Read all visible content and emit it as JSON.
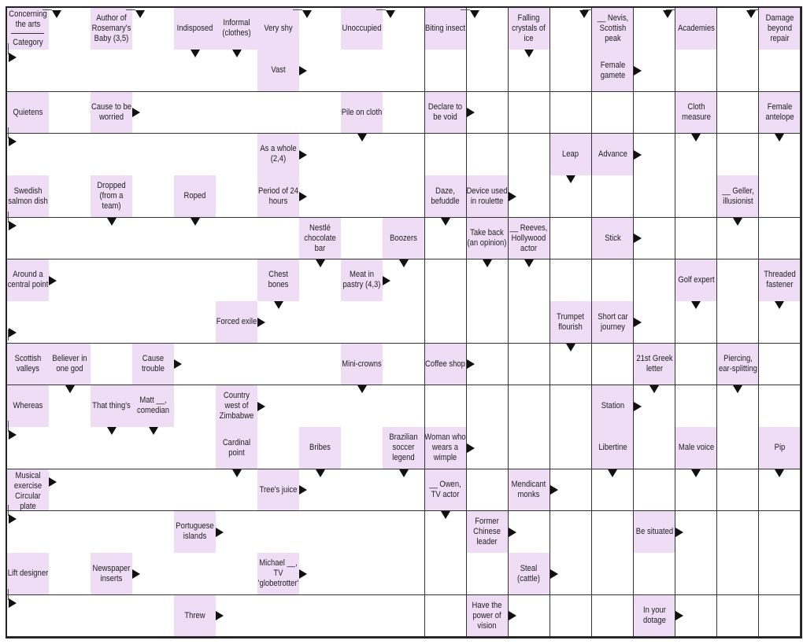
{
  "puzzle": {
    "rows": 15,
    "cols": 19,
    "colors": {
      "clue_bg": "#efdcf5",
      "grid_line": "#333333",
      "arrow": "#111111"
    },
    "clues": [
      {
        "row": 0,
        "col": 0,
        "split": true,
        "parts": [
          {
            "text": "Concerning the arts",
            "arrow": "corner"
          },
          {
            "text": "Category",
            "arrow": "corner"
          }
        ]
      },
      {
        "row": 0,
        "col": 2,
        "text": "Author of Rosemary's Baby (3,5)",
        "arrow": "corner"
      },
      {
        "row": 0,
        "col": 4,
        "text": "Indisposed",
        "arrow": "down"
      },
      {
        "row": 0,
        "col": 5,
        "text": "Informal (clothes)",
        "arrow": "down"
      },
      {
        "row": 0,
        "col": 6,
        "text": "Very shy",
        "arrow": "corner"
      },
      {
        "row": 0,
        "col": 8,
        "text": "Unoccupied",
        "arrow": "corner"
      },
      {
        "row": 0,
        "col": 10,
        "text": "Biting insect",
        "arrow": "corner"
      },
      {
        "row": 0,
        "col": 12,
        "text": "Falling crystals of ice",
        "arrow": "down"
      },
      {
        "row": 0,
        "col": 14,
        "text": "__ Nevis, Scottish peak",
        "arrow": "corner"
      },
      {
        "row": 0,
        "col": 16,
        "text": "Academies",
        "arrow": "corner"
      },
      {
        "row": 0,
        "col": 18,
        "text": "Damage beyond repair",
        "arrow": "corner"
      },
      {
        "row": 1,
        "col": 6,
        "text": "Vast",
        "arrow": "right"
      },
      {
        "row": 1,
        "col": 14,
        "text": "Female gamete",
        "arrow": "right"
      },
      {
        "row": 2,
        "col": 0,
        "text": "Quietens",
        "arrow": "corner"
      },
      {
        "row": 2,
        "col": 2,
        "text": "Cause to be worried",
        "arrow": "right"
      },
      {
        "row": 2,
        "col": 8,
        "text": "Pile on cloth",
        "arrow": "down"
      },
      {
        "row": 2,
        "col": 10,
        "text": "Declare to be void",
        "arrow": "right"
      },
      {
        "row": 2,
        "col": 16,
        "text": "Cloth measure",
        "arrow": "down"
      },
      {
        "row": 2,
        "col": 18,
        "text": "Female antelope",
        "arrow": "down"
      },
      {
        "row": 3,
        "col": 6,
        "text": "As a whole (2,4)",
        "arrow": "right"
      },
      {
        "row": 3,
        "col": 13,
        "text": "Leap",
        "arrow": "down"
      },
      {
        "row": 3,
        "col": 14,
        "text": "Advance",
        "arrow": "right"
      },
      {
        "row": 4,
        "col": 0,
        "text": "Swedish salmon dish",
        "arrow": "corner"
      },
      {
        "row": 4,
        "col": 2,
        "text": "Dropped (from a team)",
        "arrow": "down"
      },
      {
        "row": 4,
        "col": 4,
        "text": "Roped",
        "arrow": "down"
      },
      {
        "row": 4,
        "col": 6,
        "text": "Period of 24 hours",
        "arrow": "right"
      },
      {
        "row": 4,
        "col": 10,
        "text": "Daze, befuddle",
        "arrow": "down"
      },
      {
        "row": 4,
        "col": 11,
        "text": "Device used in roulette",
        "arrow": "right"
      },
      {
        "row": 4,
        "col": 17,
        "text": "__ Geller, illusionist",
        "arrow": "down"
      },
      {
        "row": 5,
        "col": 7,
        "text": "Nestlé chocolate bar",
        "arrow": "down"
      },
      {
        "row": 5,
        "col": 9,
        "text": "Boozers",
        "arrow": "down"
      },
      {
        "row": 5,
        "col": 11,
        "text": "Take back (an opinion)",
        "arrow": "down"
      },
      {
        "row": 5,
        "col": 12,
        "text": "__ Reeves, Hollywood actor",
        "arrow": "down"
      },
      {
        "row": 5,
        "col": 14,
        "text": "Stick",
        "arrow": "right"
      },
      {
        "row": 6,
        "col": 0,
        "text": "Around a central point",
        "arrow": "right"
      },
      {
        "row": 6,
        "col": 6,
        "text": "Chest bones",
        "arrow": "down"
      },
      {
        "row": 6,
        "col": 8,
        "text": "Meat in pastry (4,3)",
        "arrow": "right"
      },
      {
        "row": 6,
        "col": 16,
        "text": "Golf expert",
        "arrow": "down"
      },
      {
        "row": 6,
        "col": 18,
        "text": "Threaded fastener",
        "arrow": "down"
      },
      {
        "row": 7,
        "col": 5,
        "text": "Forced exile",
        "arrow": "right"
      },
      {
        "row": 7,
        "col": 13,
        "text": "Trumpet flourish",
        "arrow": "down"
      },
      {
        "row": 7,
        "col": 14,
        "text": "Short car journey",
        "arrow": "right"
      },
      {
        "row": 8,
        "col": 0,
        "text": "Scottish valleys",
        "arrow": "corner"
      },
      {
        "row": 8,
        "col": 1,
        "text": "Believer in one god",
        "arrow": "down"
      },
      {
        "row": 8,
        "col": 3,
        "text": "Cause trouble",
        "arrow": "right"
      },
      {
        "row": 8,
        "col": 8,
        "text": "Mini-crowns",
        "arrow": "down"
      },
      {
        "row": 8,
        "col": 10,
        "text": "Coffee shop",
        "arrow": "right"
      },
      {
        "row": 8,
        "col": 15,
        "text": "21st Greek letter",
        "arrow": "down"
      },
      {
        "row": 8,
        "col": 17,
        "text": "Piercing, ear-splitting",
        "arrow": "down"
      },
      {
        "row": 9,
        "col": 0,
        "text": "Whereas",
        "arrow": "corner"
      },
      {
        "row": 9,
        "col": 2,
        "text": "That thing's",
        "arrow": "down"
      },
      {
        "row": 9,
        "col": 3,
        "text": "Matt __, comedian",
        "arrow": "down"
      },
      {
        "row": 9,
        "col": 5,
        "text": "Country west of Zimbabwe",
        "arrow": "right"
      },
      {
        "row": 9,
        "col": 14,
        "text": "Station",
        "arrow": "right"
      },
      {
        "row": 10,
        "col": 5,
        "text": "Cardinal point",
        "arrow": "down"
      },
      {
        "row": 10,
        "col": 7,
        "text": "Bribes",
        "arrow": "down"
      },
      {
        "row": 10,
        "col": 9,
        "text": "Brazilian soccer legend",
        "arrow": "down"
      },
      {
        "row": 10,
        "col": 10,
        "text": "Woman who wears a wimple",
        "arrow": "right"
      },
      {
        "row": 10,
        "col": 14,
        "text": "Libertine",
        "arrow": "down"
      },
      {
        "row": 10,
        "col": 16,
        "text": "Male voice",
        "arrow": "down"
      },
      {
        "row": 10,
        "col": 18,
        "text": "Pip",
        "arrow": "down"
      },
      {
        "row": 11,
        "col": 0,
        "split": true,
        "parts": [
          {
            "text": "Musical exercise",
            "arrow": "right"
          },
          {
            "text": "Circular plate",
            "arrow": "corner"
          }
        ]
      },
      {
        "row": 11,
        "col": 6,
        "text": "Tree's juice",
        "arrow": "right"
      },
      {
        "row": 11,
        "col": 10,
        "text": "__ Owen, TV actor",
        "arrow": "down"
      },
      {
        "row": 11,
        "col": 12,
        "text": "Mendicant monks",
        "arrow": "right"
      },
      {
        "row": 12,
        "col": 4,
        "text": "Portuguese islands",
        "arrow": "right"
      },
      {
        "row": 12,
        "col": 11,
        "text": "Former Chinese leader",
        "arrow": "right"
      },
      {
        "row": 12,
        "col": 15,
        "text": "Be situated",
        "arrow": "right"
      },
      {
        "row": 13,
        "col": 0,
        "text": "Lift designer",
        "arrow": "corner"
      },
      {
        "row": 13,
        "col": 2,
        "text": "Newspaper inserts",
        "arrow": "right"
      },
      {
        "row": 13,
        "col": 6,
        "text": "Michael __, TV 'globetrotter'",
        "arrow": "right"
      },
      {
        "row": 13,
        "col": 12,
        "text": "Steal (cattle)",
        "arrow": "right"
      },
      {
        "row": 14,
        "col": 4,
        "text": "Threw",
        "arrow": "right"
      },
      {
        "row": 14,
        "col": 11,
        "text": "Have the power of vision",
        "arrow": "right"
      },
      {
        "row": 14,
        "col": 15,
        "text": "In your dotage",
        "arrow": "right"
      }
    ],
    "corner_arrows": [
      {
        "row": 0,
        "col": 1,
        "dir": "down",
        "corner": "top-left"
      },
      {
        "row": 0,
        "col": 3,
        "dir": "down",
        "corner": "top-left"
      },
      {
        "row": 0,
        "col": 7,
        "dir": "down",
        "corner": "top-left"
      },
      {
        "row": 0,
        "col": 9,
        "dir": "down",
        "corner": "top-left"
      },
      {
        "row": 0,
        "col": 11,
        "dir": "down",
        "corner": "top-left"
      },
      {
        "row": 0,
        "col": 13,
        "dir": "down",
        "corner": "top-right"
      },
      {
        "row": 0,
        "col": 15,
        "dir": "down",
        "corner": "top-right"
      },
      {
        "row": 0,
        "col": 17,
        "dir": "down",
        "corner": "top-right"
      },
      {
        "row": 1,
        "col": 0,
        "dir": "right",
        "corner": "top-left"
      },
      {
        "row": 3,
        "col": 0,
        "dir": "right",
        "corner": "top-left"
      },
      {
        "row": 5,
        "col": 0,
        "dir": "right",
        "corner": "top-left"
      },
      {
        "row": 7,
        "col": 0,
        "dir": "right",
        "corner": "bottom-left"
      },
      {
        "row": 10,
        "col": 0,
        "dir": "right",
        "corner": "top-left"
      },
      {
        "row": 12,
        "col": 0,
        "dir": "right",
        "corner": "top-left"
      },
      {
        "row": 14,
        "col": 0,
        "dir": "right",
        "corner": "top-left"
      }
    ]
  }
}
